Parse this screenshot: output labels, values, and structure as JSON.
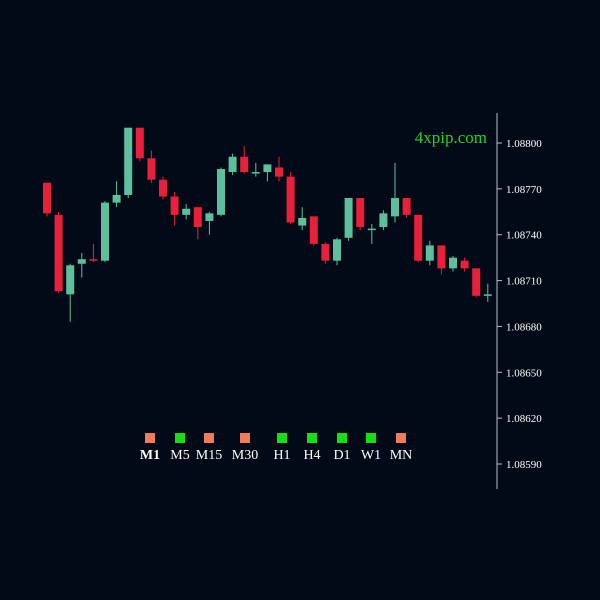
{
  "watermark": "4xpip.com",
  "colors": {
    "background": "#030a17",
    "bull": "#5dbf9c",
    "bear": "#e8203a",
    "axis": "#b8bcc6",
    "text": "#ffffff",
    "watermark": "#25d12a",
    "tf_up": "#15e015",
    "tf_down": "#f47a5a"
  },
  "timeframes": [
    {
      "label": "M1",
      "signal": "down",
      "active": true
    },
    {
      "label": "M5",
      "signal": "up",
      "active": false
    },
    {
      "label": "M15",
      "signal": "down",
      "active": false
    },
    {
      "label": "M30",
      "signal": "down",
      "active": false
    },
    {
      "label": "H1",
      "signal": "up",
      "active": false
    },
    {
      "label": "H4",
      "signal": "up",
      "active": false
    },
    {
      "label": "D1",
      "signal": "up",
      "active": false
    },
    {
      "label": "W1",
      "signal": "up",
      "active": false
    },
    {
      "label": "MN",
      "signal": "down",
      "active": false
    }
  ],
  "chart_data": {
    "type": "candlestick",
    "title": "",
    "xlabel": "",
    "ylabel": "",
    "y_axis_position": "right",
    "grid": false,
    "ylim": [
      1.0857,
      1.0882
    ],
    "y_ticks": [
      "1.08800",
      "1.08770",
      "1.08740",
      "1.08710",
      "1.08680",
      "1.08650",
      "1.08620",
      "1.08590"
    ],
    "candles": [
      {
        "o": 1.08774,
        "h": 1.08774,
        "l": 1.08752,
        "c": 1.08754
      },
      {
        "o": 1.08753,
        "h": 1.08755,
        "l": 1.08702,
        "c": 1.08703
      },
      {
        "o": 1.08701,
        "h": 1.08721,
        "l": 1.08683,
        "c": 1.0872
      },
      {
        "o": 1.08721,
        "h": 1.08728,
        "l": 1.08712,
        "c": 1.08724
      },
      {
        "o": 1.08724,
        "h": 1.08734,
        "l": 1.08722,
        "c": 1.08723
      },
      {
        "o": 1.08723,
        "h": 1.08762,
        "l": 1.08722,
        "c": 1.08761
      },
      {
        "o": 1.08761,
        "h": 1.08775,
        "l": 1.08758,
        "c": 1.08766
      },
      {
        "o": 1.08766,
        "h": 1.0881,
        "l": 1.08764,
        "c": 1.0881
      },
      {
        "o": 1.0881,
        "h": 1.0881,
        "l": 1.08788,
        "c": 1.0879
      },
      {
        "o": 1.0879,
        "h": 1.08795,
        "l": 1.08774,
        "c": 1.08776
      },
      {
        "o": 1.08776,
        "h": 1.08778,
        "l": 1.08763,
        "c": 1.08765
      },
      {
        "o": 1.08765,
        "h": 1.08768,
        "l": 1.08746,
        "c": 1.08753
      },
      {
        "o": 1.08753,
        "h": 1.0876,
        "l": 1.0875,
        "c": 1.08757
      },
      {
        "o": 1.08758,
        "h": 1.08758,
        "l": 1.08737,
        "c": 1.08745
      },
      {
        "o": 1.08749,
        "h": 1.08755,
        "l": 1.0874,
        "c": 1.08754
      },
      {
        "o": 1.08753,
        "h": 1.08784,
        "l": 1.08752,
        "c": 1.08783
      },
      {
        "o": 1.08781,
        "h": 1.08793,
        "l": 1.08779,
        "c": 1.08791
      },
      {
        "o": 1.08791,
        "h": 1.08798,
        "l": 1.0878,
        "c": 1.08781
      },
      {
        "o": 1.0878,
        "h": 1.08787,
        "l": 1.08778,
        "c": 1.08781
      },
      {
        "o": 1.08781,
        "h": 1.08786,
        "l": 1.08775,
        "c": 1.08786
      },
      {
        "o": 1.08784,
        "h": 1.08791,
        "l": 1.08775,
        "c": 1.08778
      },
      {
        "o": 1.08778,
        "h": 1.08781,
        "l": 1.08747,
        "c": 1.08748
      },
      {
        "o": 1.08746,
        "h": 1.08758,
        "l": 1.08743,
        "c": 1.08751
      },
      {
        "o": 1.08752,
        "h": 1.08752,
        "l": 1.08733,
        "c": 1.08734
      },
      {
        "o": 1.08734,
        "h": 1.08735,
        "l": 1.08721,
        "c": 1.08723
      },
      {
        "o": 1.08723,
        "h": 1.08738,
        "l": 1.0872,
        "c": 1.08737
      },
      {
        "o": 1.08738,
        "h": 1.08764,
        "l": 1.08736,
        "c": 1.08764
      },
      {
        "o": 1.08764,
        "h": 1.08764,
        "l": 1.08743,
        "c": 1.08745
      },
      {
        "o": 1.08743,
        "h": 1.08747,
        "l": 1.08734,
        "c": 1.08744
      },
      {
        "o": 1.08745,
        "h": 1.08756,
        "l": 1.08743,
        "c": 1.08754
      },
      {
        "o": 1.08752,
        "h": 1.08787,
        "l": 1.08748,
        "c": 1.08764
      },
      {
        "o": 1.08764,
        "h": 1.08764,
        "l": 1.08751,
        "c": 1.08753
      },
      {
        "o": 1.08753,
        "h": 1.08753,
        "l": 1.08722,
        "c": 1.08723
      },
      {
        "o": 1.08723,
        "h": 1.08736,
        "l": 1.0872,
        "c": 1.08733
      },
      {
        "o": 1.08733,
        "h": 1.08733,
        "l": 1.08714,
        "c": 1.08718
      },
      {
        "o": 1.08718,
        "h": 1.08726,
        "l": 1.08716,
        "c": 1.08725
      },
      {
        "o": 1.08723,
        "h": 1.08725,
        "l": 1.08716,
        "c": 1.08718
      },
      {
        "o": 1.08718,
        "h": 1.08718,
        "l": 1.08699,
        "c": 1.087
      },
      {
        "o": 1.087,
        "h": 1.08708,
        "l": 1.08696,
        "c": 1.08701
      }
    ]
  }
}
